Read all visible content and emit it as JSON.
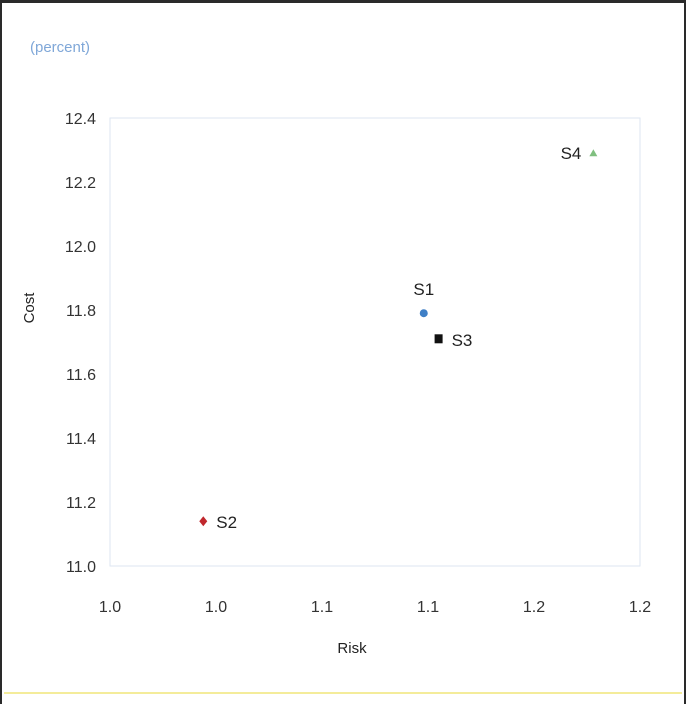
{
  "chart_data": {
    "type": "scatter",
    "unit_label": "(percent)",
    "xlabel": "Risk",
    "ylabel": "Cost",
    "xlim": [
      0.95,
      1.2
    ],
    "ylim": [
      11.0,
      12.4
    ],
    "x_ticks": [
      {
        "value": 0.95,
        "label": "1.0"
      },
      {
        "value": 1.0,
        "label": "1.0"
      },
      {
        "value": 1.05,
        "label": "1.1"
      },
      {
        "value": 1.1,
        "label": "1.1"
      },
      {
        "value": 1.15,
        "label": "1.2"
      },
      {
        "value": 1.2,
        "label": "1.2"
      }
    ],
    "y_ticks": [
      {
        "value": 11.0,
        "label": "11.0"
      },
      {
        "value": 11.2,
        "label": "11.2"
      },
      {
        "value": 11.4,
        "label": "11.4"
      },
      {
        "value": 11.6,
        "label": "11.6"
      },
      {
        "value": 11.8,
        "label": "11.8"
      },
      {
        "value": 12.0,
        "label": "12.0"
      },
      {
        "value": 12.2,
        "label": "12.2"
      },
      {
        "value": 12.4,
        "label": "12.4"
      }
    ],
    "grid": false,
    "legend": "none",
    "points": [
      {
        "label": "S1",
        "x": 1.098,
        "y": 11.79,
        "marker": "circle",
        "color": "#3f7fc6",
        "label_position": "above"
      },
      {
        "label": "S2",
        "x": 0.994,
        "y": 11.14,
        "marker": "diamond",
        "color": "#c0272d",
        "label_position": "right"
      },
      {
        "label": "S3",
        "x": 1.105,
        "y": 11.71,
        "marker": "square",
        "color": "#111111",
        "label_position": "right"
      },
      {
        "label": "S4",
        "x": 1.178,
        "y": 12.29,
        "marker": "triangle",
        "color": "#7fbf7f",
        "label_position": "left"
      }
    ]
  }
}
